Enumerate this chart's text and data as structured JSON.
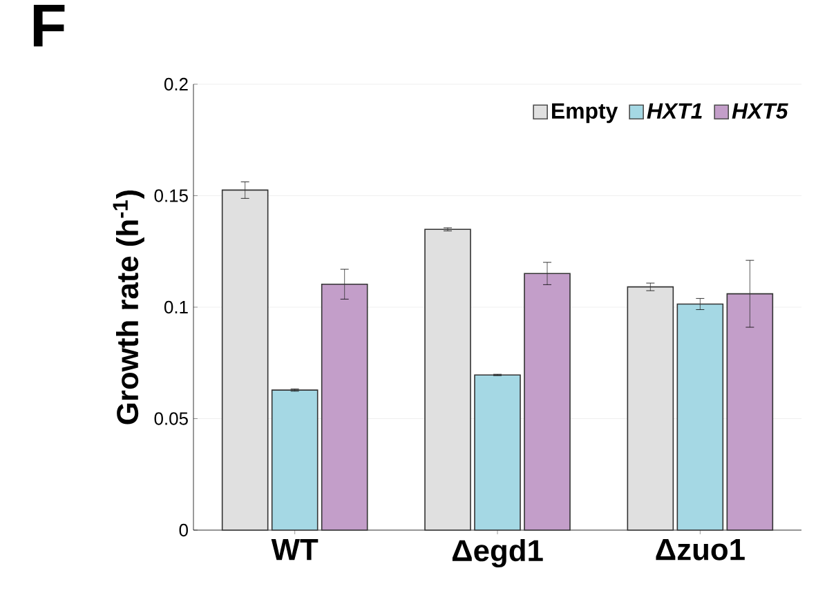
{
  "chart_data": {
    "type": "bar",
    "title": "F",
    "ylabel": "Growth rate (h$^{-1}$)",
    "categories": [
      "WT",
      "Δegd1",
      "Δzuo1"
    ],
    "series": [
      {
        "name": "Empty",
        "color": "#e0e0e0",
        "values": [
          0.1525,
          0.1349,
          0.1091
        ],
        "errors": [
          0.0037,
          0.0007,
          0.0017
        ]
      },
      {
        "name": "*HXT1*",
        "color": "#a5d8e4",
        "values": [
          0.0628,
          0.0696,
          0.1014
        ],
        "errors": [
          0.0005,
          0.0003,
          0.0025
        ]
      },
      {
        "name": "*HXT5*",
        "color": "#c39ec9",
        "values": [
          0.1103,
          0.1151,
          0.106
        ],
        "errors": [
          0.0067,
          0.005,
          0.015
        ]
      }
    ],
    "ylim": [
      0,
      0.2
    ],
    "yticks": [
      0,
      0.05,
      0.1,
      0.15,
      0.2
    ],
    "grid": "y",
    "legend": "top right"
  }
}
